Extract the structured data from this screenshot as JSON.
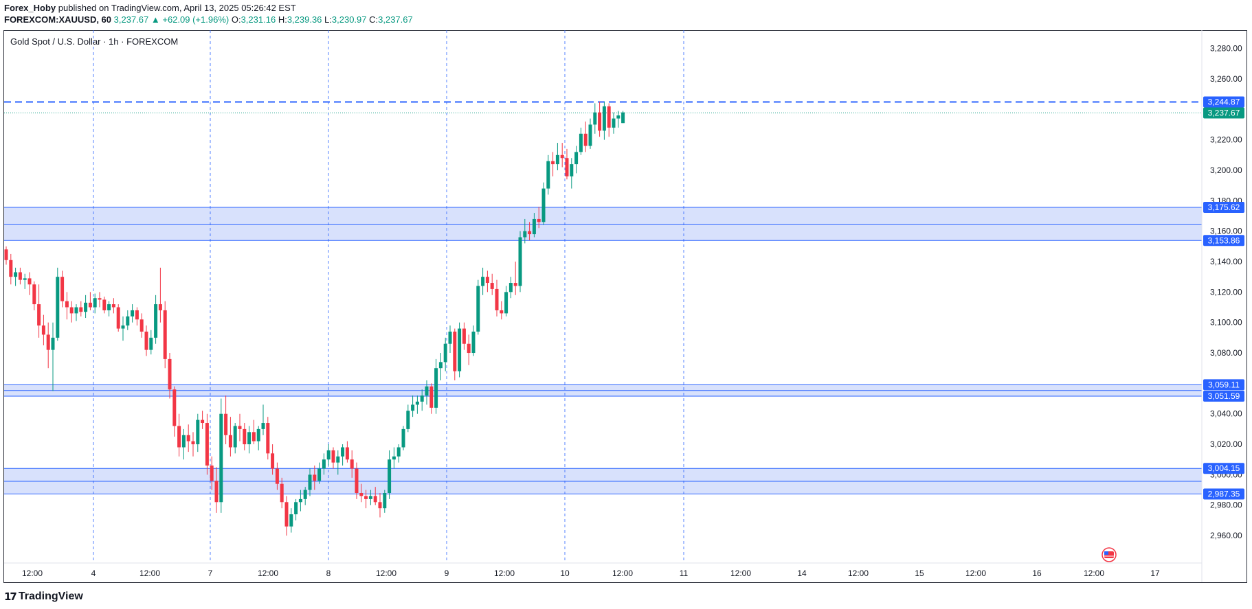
{
  "publisher": {
    "author": "Forex_Hoby",
    "text": " published on TradingView.com, April 13, 2025 05:26:42 EST"
  },
  "header": {
    "symbol": "FOREXCOM:XAUUSD, 60",
    "last": "3,237.67",
    "change": "▲ +62.09 (+1.96%)",
    "o_label": "O:",
    "o": "3,231.16",
    "h_label": "H:",
    "h": "3,239.36",
    "l_label": "L:",
    "l": "3,230.97",
    "c_label": "C:",
    "c": "3,237.67"
  },
  "brand": {
    "name": "TradingView",
    "mark": "17"
  },
  "colors": {
    "up": "#089981",
    "down": "#f23645",
    "zone_fill": "#d1dcfb",
    "zone_line": "#2962ff",
    "dashed_level": "#2962ff",
    "last_price": "#089981",
    "badge_blue": "#2962ff"
  },
  "chart_data": {
    "type": "candlestick",
    "title": "Gold Spot / U.S. Dollar · 1h · FOREXCOM",
    "ylim": [
      2942,
      3292
    ],
    "y_ticks": [
      {
        "v": 3280,
        "label": "3,280.00"
      },
      {
        "v": 3260,
        "label": "3,260.00"
      },
      {
        "v": 3220,
        "label": "3,220.00"
      },
      {
        "v": 3200,
        "label": "3,200.00"
      },
      {
        "v": 3180,
        "label": "3,180.00"
      },
      {
        "v": 3160,
        "label": "3,160.00"
      },
      {
        "v": 3140,
        "label": "3,140.00"
      },
      {
        "v": 3120,
        "label": "3,120.00"
      },
      {
        "v": 3100,
        "label": "3,100.00"
      },
      {
        "v": 3080,
        "label": "3,080.00"
      },
      {
        "v": 3040,
        "label": "3,040.00"
      },
      {
        "v": 3020,
        "label": "3,020.00"
      },
      {
        "v": 3000,
        "label": "3,000.00"
      },
      {
        "v": 2980,
        "label": "2,980.00"
      },
      {
        "v": 2960,
        "label": "2,960.00"
      }
    ],
    "x_ticks": [
      "12:00",
      "4",
      "12:00",
      "7",
      "12:00",
      "8",
      "12:00",
      "9",
      "12:00",
      "10",
      "12:00",
      "11",
      "12:00",
      "14",
      "12:00",
      "15",
      "12:00",
      "16",
      "12:00",
      "17"
    ],
    "day_separators": [
      "4",
      "7",
      "8",
      "9",
      "10",
      "11"
    ],
    "zones": [
      {
        "top": 3175.62,
        "bottom": 3153.86,
        "mid": 3164.6,
        "top_label": "3,175.62",
        "bottom_label": "3,153.86"
      },
      {
        "top": 3059.11,
        "bottom": 3051.59,
        "mid": 3055.3,
        "top_label": "3,059.11",
        "bottom_label": "3,051.59"
      },
      {
        "top": 3004.15,
        "bottom": 2987.35,
        "mid": 2995.7,
        "top_label": "3,004.15",
        "bottom_label": "2,987.35"
      }
    ],
    "resistance_level": {
      "value": 3244.87,
      "label": "3,244.87"
    },
    "last_price": {
      "value": 3237.67,
      "label": "3,237.67"
    },
    "events": [
      "US economic event"
    ],
    "candles_ohlc": [
      [
        3148,
        3150,
        3138,
        3141
      ],
      [
        3141,
        3145,
        3125,
        3130
      ],
      [
        3130,
        3136,
        3124,
        3133
      ],
      [
        3133,
        3136,
        3125,
        3128
      ],
      [
        3128,
        3132,
        3122,
        3129
      ],
      [
        3129,
        3133,
        3118,
        3125
      ],
      [
        3125,
        3127,
        3108,
        3112
      ],
      [
        3112,
        3125,
        3090,
        3098
      ],
      [
        3098,
        3105,
        3085,
        3092
      ],
      [
        3092,
        3100,
        3070,
        3082
      ],
      [
        3082,
        3100,
        3055,
        3090
      ],
      [
        3090,
        3136,
        3088,
        3130
      ],
      [
        3130,
        3134,
        3110,
        3114
      ],
      [
        3114,
        3120,
        3102,
        3110
      ],
      [
        3110,
        3114,
        3100,
        3106
      ],
      [
        3106,
        3112,
        3101,
        3110
      ],
      [
        3110,
        3114,
        3104,
        3107
      ],
      [
        3107,
        3118,
        3103,
        3113
      ],
      [
        3113,
        3120,
        3108,
        3110
      ],
      [
        3110,
        3119,
        3106,
        3116
      ],
      [
        3116,
        3120,
        3110,
        3115
      ],
      [
        3115,
        3117,
        3106,
        3108
      ],
      [
        3108,
        3114,
        3104,
        3112
      ],
      [
        3112,
        3116,
        3106,
        3110
      ],
      [
        3110,
        3112,
        3094,
        3096
      ],
      [
        3096,
        3104,
        3088,
        3098
      ],
      [
        3098,
        3108,
        3095,
        3104
      ],
      [
        3104,
        3112,
        3100,
        3108
      ],
      [
        3108,
        3110,
        3098,
        3102
      ],
      [
        3102,
        3106,
        3090,
        3094
      ],
      [
        3094,
        3098,
        3078,
        3082
      ],
      [
        3082,
        3095,
        3079,
        3090
      ],
      [
        3090,
        3118,
        3086,
        3112
      ],
      [
        3112,
        3136,
        3100,
        3108
      ],
      [
        3108,
        3114,
        3070,
        3076
      ],
      [
        3076,
        3080,
        3050,
        3056
      ],
      [
        3056,
        3058,
        3025,
        3032
      ],
      [
        3032,
        3040,
        3012,
        3018
      ],
      [
        3018,
        3030,
        3010,
        3026
      ],
      [
        3026,
        3033,
        3015,
        3022
      ],
      [
        3022,
        3028,
        3012,
        3020
      ],
      [
        3020,
        3040,
        3015,
        3036
      ],
      [
        3036,
        3042,
        3030,
        3034
      ],
      [
        3034,
        3040,
        3000,
        3006
      ],
      [
        3006,
        3012,
        2990,
        2996
      ],
      [
        2996,
        3005,
        2975,
        2982
      ],
      [
        2982,
        3050,
        2975,
        3040
      ],
      [
        3040,
        3052,
        3020,
        3026
      ],
      [
        3026,
        3038,
        3012,
        3018
      ],
      [
        3018,
        3034,
        3014,
        3032
      ],
      [
        3032,
        3040,
        3022,
        3030
      ],
      [
        3030,
        3034,
        3016,
        3020
      ],
      [
        3020,
        3032,
        3014,
        3028
      ],
      [
        3028,
        3036,
        3020,
        3022
      ],
      [
        3022,
        3032,
        3016,
        3030
      ],
      [
        3030,
        3046,
        3026,
        3034
      ],
      [
        3034,
        3038,
        3010,
        3014
      ],
      [
        3014,
        3020,
        3000,
        3004
      ],
      [
        3004,
        3008,
        2990,
        2994
      ],
      [
        2994,
        2998,
        2978,
        2982
      ],
      [
        2982,
        2986,
        2960,
        2966
      ],
      [
        2966,
        2978,
        2962,
        2974
      ],
      [
        2974,
        2984,
        2970,
        2982
      ],
      [
        2982,
        2990,
        2976,
        2984
      ],
      [
        2984,
        2992,
        2980,
        2990
      ],
      [
        2990,
        3004,
        2986,
        3000
      ],
      [
        3000,
        3006,
        2990,
        2996
      ],
      [
        2996,
        3008,
        2994,
        3004
      ],
      [
        3004,
        3014,
        3000,
        3010
      ],
      [
        3010,
        3020,
        3006,
        3016
      ],
      [
        3016,
        3018,
        3004,
        3008
      ],
      [
        3008,
        3016,
        3000,
        3012
      ],
      [
        3012,
        3020,
        3006,
        3018
      ],
      [
        3018,
        3022,
        3008,
        3010
      ],
      [
        3010,
        3016,
        2998,
        3004
      ],
      [
        3004,
        3008,
        2984,
        2988
      ],
      [
        2988,
        2994,
        2982,
        2986
      ],
      [
        2986,
        2990,
        2978,
        2984
      ],
      [
        2984,
        2990,
        2980,
        2986
      ],
      [
        2986,
        2992,
        2980,
        2982
      ],
      [
        2982,
        2988,
        2972,
        2978
      ],
      [
        2978,
        2990,
        2975,
        2988
      ],
      [
        2988,
        3016,
        2984,
        3010
      ],
      [
        3010,
        3018,
        3004,
        3012
      ],
      [
        3012,
        3020,
        3008,
        3018
      ],
      [
        3018,
        3032,
        3016,
        3030
      ],
      [
        3030,
        3046,
        3028,
        3042
      ],
      [
        3042,
        3052,
        3038,
        3046
      ],
      [
        3046,
        3052,
        3040,
        3048
      ],
      [
        3048,
        3056,
        3042,
        3052
      ],
      [
        3052,
        3062,
        3046,
        3058
      ],
      [
        3058,
        3060,
        3040,
        3044
      ],
      [
        3044,
        3076,
        3040,
        3070
      ],
      [
        3070,
        3080,
        3062,
        3074
      ],
      [
        3074,
        3090,
        3068,
        3086
      ],
      [
        3086,
        3098,
        3080,
        3094
      ],
      [
        3094,
        3096,
        3062,
        3068
      ],
      [
        3068,
        3100,
        3064,
        3096
      ],
      [
        3096,
        3100,
        3082,
        3086
      ],
      [
        3086,
        3092,
        3072,
        3080
      ],
      [
        3080,
        3098,
        3078,
        3094
      ],
      [
        3094,
        3128,
        3092,
        3124
      ],
      [
        3124,
        3136,
        3118,
        3130
      ],
      [
        3130,
        3134,
        3120,
        3126
      ],
      [
        3126,
        3132,
        3118,
        3122
      ],
      [
        3122,
        3128,
        3104,
        3108
      ],
      [
        3108,
        3114,
        3102,
        3106
      ],
      [
        3106,
        3124,
        3104,
        3120
      ],
      [
        3120,
        3130,
        3116,
        3126
      ],
      [
        3126,
        3140,
        3118,
        3124
      ],
      [
        3124,
        3160,
        3120,
        3156
      ],
      [
        3156,
        3168,
        3152,
        3160
      ],
      [
        3160,
        3166,
        3154,
        3158
      ],
      [
        3158,
        3172,
        3156,
        3168
      ],
      [
        3168,
        3176,
        3162,
        3166
      ],
      [
        3166,
        3192,
        3164,
        3188
      ],
      [
        3188,
        3210,
        3184,
        3206
      ],
      [
        3206,
        3212,
        3196,
        3204
      ],
      [
        3204,
        3218,
        3200,
        3210
      ],
      [
        3210,
        3218,
        3202,
        3208
      ],
      [
        3208,
        3214,
        3194,
        3196
      ],
      [
        3196,
        3208,
        3188,
        3204
      ],
      [
        3204,
        3216,
        3198,
        3212
      ],
      [
        3212,
        3228,
        3210,
        3224
      ],
      [
        3224,
        3232,
        3212,
        3216
      ],
      [
        3216,
        3234,
        3214,
        3230
      ],
      [
        3230,
        3244,
        3224,
        3238
      ],
      [
        3238,
        3245,
        3222,
        3226
      ],
      [
        3226,
        3245,
        3220,
        3242
      ],
      [
        3242,
        3244,
        3222,
        3228
      ],
      [
        3228,
        3238,
        3224,
        3234
      ],
      [
        3234,
        3239,
        3228,
        3236
      ],
      [
        3231,
        3239,
        3231,
        3238
      ]
    ]
  }
}
